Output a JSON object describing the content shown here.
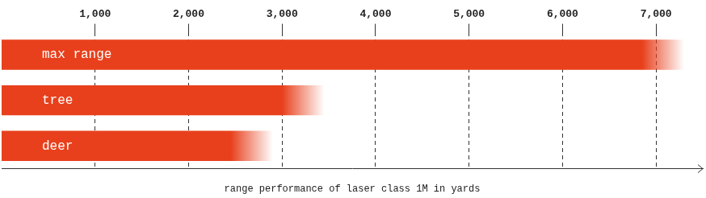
{
  "chart_data": {
    "type": "bar",
    "orientation": "horizontal",
    "categories": [
      "max range",
      "tree",
      "deer"
    ],
    "values": [
      7300,
      3450,
      2900
    ],
    "color": "#e8401c",
    "xlabel": "range performance of laser class 1M in yards",
    "xlim": [
      0,
      7500
    ],
    "xticks": [
      1000,
      2000,
      3000,
      4000,
      5000,
      6000,
      7000
    ],
    "grid": true
  }
}
